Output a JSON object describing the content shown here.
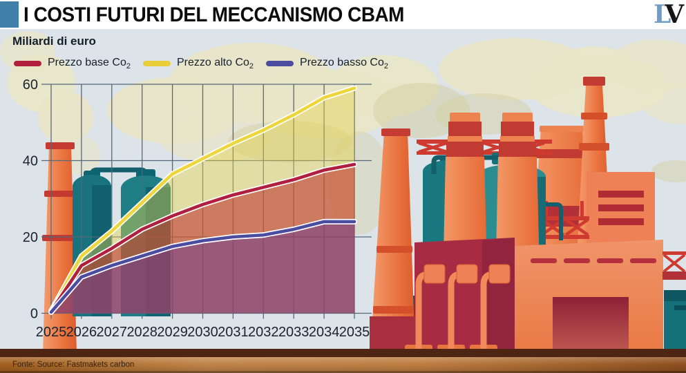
{
  "page": {
    "sky_color": "#dce3e9"
  },
  "header": {
    "title": "I COSTI FUTURI DEL MECCANISMO CBAM",
    "accent_color": "#4180a8",
    "logo": {
      "l": "L",
      "v": "V",
      "l_color": "#6f9dc4",
      "v_color": "#16161a"
    }
  },
  "chart_header": {
    "unit_label": "Miliardi di euro"
  },
  "legend": [
    {
      "label": "Prezzo base Co",
      "sub": "2",
      "color": "#b01f3d"
    },
    {
      "label": "Prezzo alto Co",
      "sub": "2",
      "color": "#e9ce39"
    },
    {
      "label": "Prezzo basso Co",
      "sub": "2",
      "color": "#4b4c9f"
    }
  ],
  "chart_data": {
    "type": "area",
    "title": "I costi futuri del meccanismo CBAM",
    "ylabel": "Miliardi di euro",
    "x": [
      2025,
      2026,
      2027,
      2028,
      2029,
      2030,
      2031,
      2032,
      2033,
      2034,
      2035
    ],
    "series": [
      {
        "name": "Prezzo alto Co2",
        "color": "#ecd63c",
        "fill": "rgba(230,212,70,0.42)",
        "values": [
          0.6,
          15,
          21.5,
          29,
          36.5,
          40.5,
          44.5,
          48,
          52,
          56.5,
          59
        ]
      },
      {
        "name": "Prezzo base Co2",
        "color": "#b01f3d",
        "fill": "rgba(190,42,40,0.55)",
        "values": [
          0.5,
          12.5,
          17,
          22,
          25.5,
          28.5,
          31,
          33,
          35,
          37.5,
          39
        ]
      },
      {
        "name": "Prezzo basso Co2",
        "color": "#4b4c9f",
        "fill": "rgba(104,58,148,0.52)",
        "values": [
          0.3,
          9.5,
          12.5,
          15,
          17.5,
          19,
          20,
          20.5,
          22,
          24,
          24
        ]
      }
    ],
    "ylim": [
      0,
      60
    ],
    "yticks": [
      0,
      20,
      40,
      60
    ],
    "grid": true,
    "legend_position": "top-left"
  },
  "footer": {
    "source": "Fonte: Source: Fastmakets carbon"
  }
}
